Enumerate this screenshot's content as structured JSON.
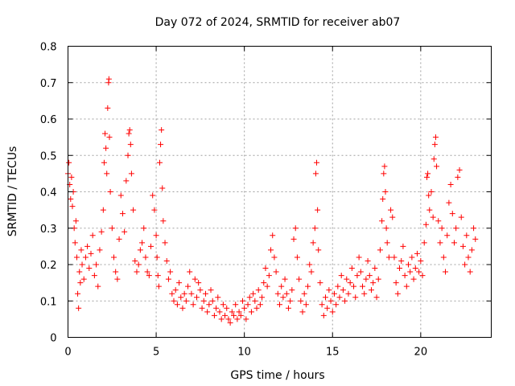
{
  "chart_data": {
    "type": "scatter",
    "title": "Day 072 of 2024, SRMTID for receiver ab07",
    "xlabel": "GPS time / hours",
    "ylabel": "SRMTID / TECUs",
    "xlim": [
      0,
      24
    ],
    "ylim": [
      0,
      0.8
    ],
    "xticks": [
      0,
      5,
      10,
      15,
      20
    ],
    "xtick_labels": [
      "0",
      "5",
      "10",
      "15",
      "20"
    ],
    "yticks": [
      0,
      0.1,
      0.2,
      0.3,
      0.4,
      0.5,
      0.6,
      0.7,
      0.8
    ],
    "ytick_labels": [
      "0",
      "0.1",
      "0.2",
      "0.3",
      "0.4",
      "0.5",
      "0.6",
      "0.7",
      "0.8"
    ],
    "grid": true,
    "marker": "+",
    "color": "#ff0000",
    "series": [
      {
        "name": "SRMTID",
        "points": [
          [
            0.0,
            0.45
          ],
          [
            0.05,
            0.48
          ],
          [
            0.1,
            0.42
          ],
          [
            0.15,
            0.38
          ],
          [
            0.2,
            0.44
          ],
          [
            0.25,
            0.36
          ],
          [
            0.3,
            0.4
          ],
          [
            0.35,
            0.3
          ],
          [
            0.4,
            0.26
          ],
          [
            0.45,
            0.32
          ],
          [
            0.5,
            0.22
          ],
          [
            0.55,
            0.12
          ],
          [
            0.6,
            0.08
          ],
          [
            0.65,
            0.18
          ],
          [
            0.7,
            0.15
          ],
          [
            0.75,
            0.24
          ],
          [
            0.8,
            0.2
          ],
          [
            0.9,
            0.16
          ],
          [
            1.0,
            0.22
          ],
          [
            1.1,
            0.25
          ],
          [
            1.2,
            0.19
          ],
          [
            1.3,
            0.23
          ],
          [
            1.4,
            0.28
          ],
          [
            1.5,
            0.17
          ],
          [
            1.6,
            0.2
          ],
          [
            1.7,
            0.14
          ],
          [
            1.8,
            0.24
          ],
          [
            1.9,
            0.29
          ],
          [
            2.0,
            0.35
          ],
          [
            2.05,
            0.48
          ],
          [
            2.1,
            0.56
          ],
          [
            2.15,
            0.52
          ],
          [
            2.2,
            0.45
          ],
          [
            2.25,
            0.63
          ],
          [
            2.3,
            0.7
          ],
          [
            2.32,
            0.71
          ],
          [
            2.35,
            0.55
          ],
          [
            2.4,
            0.4
          ],
          [
            2.5,
            0.3
          ],
          [
            2.6,
            0.22
          ],
          [
            2.7,
            0.18
          ],
          [
            2.8,
            0.16
          ],
          [
            2.9,
            0.27
          ],
          [
            3.0,
            0.39
          ],
          [
            3.1,
            0.34
          ],
          [
            3.2,
            0.29
          ],
          [
            3.3,
            0.43
          ],
          [
            3.4,
            0.5
          ],
          [
            3.45,
            0.56
          ],
          [
            3.5,
            0.57
          ],
          [
            3.55,
            0.53
          ],
          [
            3.6,
            0.45
          ],
          [
            3.7,
            0.35
          ],
          [
            3.8,
            0.21
          ],
          [
            3.9,
            0.18
          ],
          [
            4.0,
            0.2
          ],
          [
            4.1,
            0.24
          ],
          [
            4.2,
            0.26
          ],
          [
            4.3,
            0.3
          ],
          [
            4.4,
            0.22
          ],
          [
            4.5,
            0.18
          ],
          [
            4.6,
            0.17
          ],
          [
            4.7,
            0.25
          ],
          [
            4.8,
            0.39
          ],
          [
            4.9,
            0.35
          ],
          [
            5.0,
            0.28
          ],
          [
            5.05,
            0.22
          ],
          [
            5.1,
            0.17
          ],
          [
            5.15,
            0.14
          ],
          [
            5.2,
            0.48
          ],
          [
            5.25,
            0.53
          ],
          [
            5.3,
            0.57
          ],
          [
            5.35,
            0.41
          ],
          [
            5.4,
            0.32
          ],
          [
            5.5,
            0.26
          ],
          [
            5.6,
            0.21
          ],
          [
            5.7,
            0.16
          ],
          [
            5.8,
            0.18
          ],
          [
            5.9,
            0.12
          ],
          [
            6.0,
            0.1
          ],
          [
            6.1,
            0.13
          ],
          [
            6.2,
            0.09
          ],
          [
            6.3,
            0.15
          ],
          [
            6.4,
            0.11
          ],
          [
            6.5,
            0.08
          ],
          [
            6.6,
            0.12
          ],
          [
            6.7,
            0.1
          ],
          [
            6.8,
            0.14
          ],
          [
            6.9,
            0.18
          ],
          [
            7.0,
            0.12
          ],
          [
            7.1,
            0.09
          ],
          [
            7.2,
            0.16
          ],
          [
            7.3,
            0.11
          ],
          [
            7.4,
            0.15
          ],
          [
            7.5,
            0.13
          ],
          [
            7.6,
            0.08
          ],
          [
            7.7,
            0.1
          ],
          [
            7.8,
            0.12
          ],
          [
            7.9,
            0.07
          ],
          [
            8.0,
            0.09
          ],
          [
            8.1,
            0.13
          ],
          [
            8.2,
            0.1
          ],
          [
            8.3,
            0.06
          ],
          [
            8.4,
            0.08
          ],
          [
            8.5,
            0.11
          ],
          [
            8.6,
            0.07
          ],
          [
            8.7,
            0.05
          ],
          [
            8.8,
            0.09
          ],
          [
            8.9,
            0.06
          ],
          [
            9.0,
            0.08
          ],
          [
            9.1,
            0.05
          ],
          [
            9.2,
            0.04
          ],
          [
            9.3,
            0.07
          ],
          [
            9.4,
            0.06
          ],
          [
            9.5,
            0.09
          ],
          [
            9.6,
            0.05
          ],
          [
            9.7,
            0.07
          ],
          [
            9.8,
            0.06
          ],
          [
            9.9,
            0.1
          ],
          [
            10.0,
            0.08
          ],
          [
            10.1,
            0.05
          ],
          [
            10.2,
            0.09
          ],
          [
            10.3,
            0.11
          ],
          [
            10.4,
            0.07
          ],
          [
            10.5,
            0.12
          ],
          [
            10.6,
            0.1
          ],
          [
            10.7,
            0.08
          ],
          [
            10.8,
            0.13
          ],
          [
            10.9,
            0.09
          ],
          [
            11.0,
            0.11
          ],
          [
            11.1,
            0.15
          ],
          [
            11.2,
            0.19
          ],
          [
            11.3,
            0.14
          ],
          [
            11.4,
            0.17
          ],
          [
            11.5,
            0.24
          ],
          [
            11.6,
            0.28
          ],
          [
            11.7,
            0.22
          ],
          [
            11.8,
            0.18
          ],
          [
            11.9,
            0.12
          ],
          [
            12.0,
            0.09
          ],
          [
            12.1,
            0.14
          ],
          [
            12.2,
            0.11
          ],
          [
            12.3,
            0.16
          ],
          [
            12.4,
            0.12
          ],
          [
            12.5,
            0.08
          ],
          [
            12.6,
            0.1
          ],
          [
            12.7,
            0.13
          ],
          [
            12.8,
            0.27
          ],
          [
            12.9,
            0.3
          ],
          [
            13.0,
            0.22
          ],
          [
            13.1,
            0.16
          ],
          [
            13.2,
            0.1
          ],
          [
            13.3,
            0.07
          ],
          [
            13.4,
            0.12
          ],
          [
            13.5,
            0.09
          ],
          [
            13.6,
            0.14
          ],
          [
            13.7,
            0.2
          ],
          [
            13.8,
            0.18
          ],
          [
            13.9,
            0.26
          ],
          [
            14.0,
            0.3
          ],
          [
            14.05,
            0.45
          ],
          [
            14.1,
            0.48
          ],
          [
            14.15,
            0.35
          ],
          [
            14.2,
            0.24
          ],
          [
            14.3,
            0.15
          ],
          [
            14.4,
            0.09
          ],
          [
            14.5,
            0.06
          ],
          [
            14.6,
            0.11
          ],
          [
            14.7,
            0.08
          ],
          [
            14.8,
            0.13
          ],
          [
            14.9,
            0.1
          ],
          [
            15.0,
            0.07
          ],
          [
            15.1,
            0.12
          ],
          [
            15.2,
            0.09
          ],
          [
            15.3,
            0.14
          ],
          [
            15.4,
            0.11
          ],
          [
            15.5,
            0.17
          ],
          [
            15.6,
            0.13
          ],
          [
            15.7,
            0.1
          ],
          [
            15.8,
            0.16
          ],
          [
            15.9,
            0.12
          ],
          [
            16.0,
            0.15
          ],
          [
            16.1,
            0.19
          ],
          [
            16.2,
            0.14
          ],
          [
            16.3,
            0.11
          ],
          [
            16.4,
            0.17
          ],
          [
            16.5,
            0.22
          ],
          [
            16.6,
            0.18
          ],
          [
            16.7,
            0.14
          ],
          [
            16.8,
            0.12
          ],
          [
            16.9,
            0.16
          ],
          [
            17.0,
            0.21
          ],
          [
            17.1,
            0.17
          ],
          [
            17.2,
            0.13
          ],
          [
            17.3,
            0.15
          ],
          [
            17.4,
            0.19
          ],
          [
            17.5,
            0.11
          ],
          [
            17.6,
            0.16
          ],
          [
            17.7,
            0.24
          ],
          [
            17.8,
            0.32
          ],
          [
            17.85,
            0.38
          ],
          [
            17.9,
            0.45
          ],
          [
            17.95,
            0.47
          ],
          [
            18.0,
            0.4
          ],
          [
            18.05,
            0.3
          ],
          [
            18.1,
            0.26
          ],
          [
            18.2,
            0.22
          ],
          [
            18.3,
            0.35
          ],
          [
            18.4,
            0.33
          ],
          [
            18.5,
            0.22
          ],
          [
            18.6,
            0.15
          ],
          [
            18.7,
            0.12
          ],
          [
            18.8,
            0.19
          ],
          [
            18.9,
            0.21
          ],
          [
            19.0,
            0.25
          ],
          [
            19.1,
            0.17
          ],
          [
            19.2,
            0.14
          ],
          [
            19.3,
            0.2
          ],
          [
            19.4,
            0.18
          ],
          [
            19.5,
            0.22
          ],
          [
            19.6,
            0.16
          ],
          [
            19.7,
            0.19
          ],
          [
            19.8,
            0.23
          ],
          [
            19.9,
            0.18
          ],
          [
            20.0,
            0.21
          ],
          [
            20.1,
            0.17
          ],
          [
            20.2,
            0.26
          ],
          [
            20.3,
            0.31
          ],
          [
            20.35,
            0.44
          ],
          [
            20.4,
            0.45
          ],
          [
            20.45,
            0.39
          ],
          [
            20.5,
            0.35
          ],
          [
            20.6,
            0.4
          ],
          [
            20.7,
            0.33
          ],
          [
            20.75,
            0.49
          ],
          [
            20.8,
            0.53
          ],
          [
            20.85,
            0.55
          ],
          [
            20.9,
            0.47
          ],
          [
            21.0,
            0.32
          ],
          [
            21.1,
            0.26
          ],
          [
            21.2,
            0.3
          ],
          [
            21.3,
            0.22
          ],
          [
            21.4,
            0.18
          ],
          [
            21.5,
            0.28
          ],
          [
            21.6,
            0.37
          ],
          [
            21.7,
            0.42
          ],
          [
            21.8,
            0.34
          ],
          [
            21.9,
            0.26
          ],
          [
            22.0,
            0.3
          ],
          [
            22.1,
            0.44
          ],
          [
            22.2,
            0.46
          ],
          [
            22.3,
            0.33
          ],
          [
            22.4,
            0.25
          ],
          [
            22.5,
            0.2
          ],
          [
            22.6,
            0.28
          ],
          [
            22.7,
            0.22
          ],
          [
            22.8,
            0.18
          ],
          [
            22.9,
            0.24
          ],
          [
            23.0,
            0.3
          ],
          [
            23.1,
            0.27
          ]
        ]
      }
    ]
  }
}
